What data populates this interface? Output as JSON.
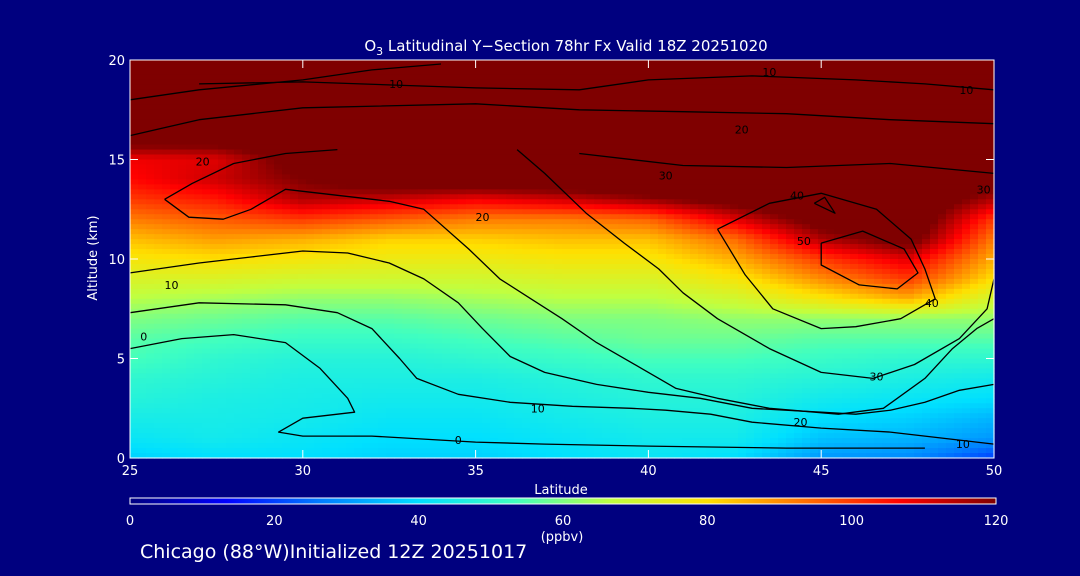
{
  "chart_data": {
    "type": "heatmap",
    "title_prefix": "O",
    "title_subscript": "3",
    "title_rest": " Latitudinal Y−Section 78hr  Fx Valid 18Z 20251020",
    "xlabel": "Latitude",
    "ylabel": "Altitude (km)",
    "xlim": [
      25,
      50
    ],
    "ylim": [
      0,
      20
    ],
    "x_ticks": [
      25,
      30,
      35,
      40,
      45,
      50
    ],
    "y_ticks": [
      0,
      5,
      10,
      15,
      20
    ],
    "colorbar": {
      "ticks": [
        0,
        20,
        40,
        60,
        80,
        100,
        120
      ],
      "units": "(ppbv)",
      "range": [
        0,
        120
      ],
      "colors": [
        "#00007f",
        "#0000ff",
        "#0080ff",
        "#00e0ff",
        "#40ffc0",
        "#c0ff40",
        "#ffe000",
        "#ff7000",
        "#ff0000",
        "#7f0000"
      ]
    },
    "ozone_field_latitudes": [
      25,
      27.5,
      30,
      32.5,
      35,
      37.5,
      40,
      42.5,
      45,
      47.5,
      50
    ],
    "ozone_field_altitudes": [
      0,
      1,
      2,
      3,
      4,
      5,
      6,
      7,
      8,
      9,
      10,
      11,
      12,
      13,
      14,
      15,
      16,
      17,
      18,
      19,
      20
    ],
    "ozone_ppbv": [
      [
        38,
        40,
        40,
        38,
        38,
        40,
        42,
        40,
        30,
        28,
        20
      ],
      [
        42,
        44,
        42,
        40,
        40,
        42,
        44,
        44,
        36,
        34,
        30
      ],
      [
        45,
        45,
        44,
        42,
        42,
        44,
        46,
        46,
        40,
        38,
        34
      ],
      [
        48,
        46,
        45,
        44,
        44,
        46,
        48,
        48,
        44,
        42,
        40
      ],
      [
        50,
        48,
        46,
        46,
        46,
        48,
        50,
        50,
        48,
        46,
        44
      ],
      [
        54,
        50,
        48,
        48,
        50,
        52,
        54,
        54,
        52,
        50,
        50
      ],
      [
        56,
        54,
        52,
        52,
        54,
        56,
        58,
        58,
        56,
        56,
        56
      ],
      [
        60,
        58,
        56,
        56,
        58,
        60,
        60,
        62,
        62,
        62,
        62
      ],
      [
        66,
        64,
        62,
        62,
        64,
        66,
        66,
        70,
        78,
        86,
        70
      ],
      [
        72,
        72,
        70,
        70,
        70,
        72,
        72,
        78,
        90,
        100,
        80
      ],
      [
        78,
        80,
        78,
        76,
        76,
        78,
        78,
        86,
        100,
        110,
        86
      ],
      [
        84,
        88,
        86,
        82,
        82,
        84,
        84,
        94,
        115,
        125,
        92
      ],
      [
        92,
        96,
        100,
        96,
        92,
        92,
        95,
        110,
        125,
        130,
        100
      ],
      [
        100,
        104,
        115,
        112,
        108,
        112,
        118,
        125,
        130,
        130,
        115
      ],
      [
        106,
        112,
        120,
        128,
        130,
        130,
        130,
        130,
        130,
        130,
        125
      ],
      [
        108,
        110,
        125,
        130,
        130,
        130,
        130,
        130,
        130,
        130,
        130
      ],
      [
        125,
        125,
        130,
        130,
        130,
        130,
        130,
        130,
        130,
        130,
        130
      ],
      [
        130,
        130,
        130,
        130,
        130,
        130,
        130,
        130,
        130,
        130,
        130
      ],
      [
        130,
        130,
        130,
        130,
        130,
        130,
        130,
        130,
        130,
        130,
        130
      ],
      [
        130,
        130,
        130,
        130,
        130,
        130,
        130,
        130,
        130,
        130,
        130
      ],
      [
        130,
        130,
        130,
        130,
        130,
        130,
        130,
        130,
        130,
        130,
        130
      ]
    ],
    "contours": [
      {
        "value": "0",
        "points": [
          [
            25,
            5.5
          ],
          [
            26.5,
            6
          ],
          [
            28,
            6.2
          ],
          [
            29.5,
            5.8
          ],
          [
            30.5,
            4.5
          ],
          [
            31.3,
            3
          ],
          [
            31.5,
            2.3
          ],
          [
            30,
            2
          ],
          [
            29.3,
            1.3
          ],
          [
            30,
            1.1
          ],
          [
            32,
            1.1
          ],
          [
            35,
            0.8
          ],
          [
            37,
            0.7
          ],
          [
            40,
            0.6
          ],
          [
            44,
            0.5
          ],
          [
            48,
            0.5
          ]
        ]
      },
      {
        "value": "10",
        "points": [
          [
            25,
            7.3
          ],
          [
            27,
            7.8
          ],
          [
            29.5,
            7.7
          ],
          [
            31,
            7.3
          ],
          [
            32,
            6.5
          ],
          [
            32.8,
            5
          ],
          [
            33.3,
            4
          ],
          [
            34.5,
            3.2
          ],
          [
            36,
            2.8
          ],
          [
            37.8,
            2.6
          ],
          [
            39.5,
            2.5
          ],
          [
            40.5,
            2.4
          ],
          [
            41.8,
            2.2
          ],
          [
            43,
            1.8
          ],
          [
            45,
            1.5
          ],
          [
            47,
            1.3
          ],
          [
            48.5,
            1
          ],
          [
            49.5,
            0.8
          ],
          [
            50,
            0.7
          ]
        ]
      },
      {
        "value": "10",
        "points": [
          [
            25,
            9.3
          ],
          [
            27,
            9.8
          ],
          [
            28.5,
            10.1
          ],
          [
            30,
            10.4
          ],
          [
            31.3,
            10.3
          ],
          [
            32.5,
            9.8
          ],
          [
            33.5,
            9
          ],
          [
            34.5,
            7.8
          ],
          [
            35.2,
            6.5
          ],
          [
            36,
            5.1
          ],
          [
            37,
            4.3
          ],
          [
            38.5,
            3.7
          ],
          [
            40,
            3.3
          ],
          [
            41.5,
            3
          ],
          [
            43,
            2.5
          ],
          [
            45,
            2.3
          ],
          [
            46,
            2.2
          ],
          [
            47,
            2.4
          ],
          [
            48,
            2.8
          ],
          [
            49,
            3.4
          ],
          [
            50,
            3.7
          ]
        ]
      },
      {
        "value": "10",
        "points": [
          [
            25,
            18
          ],
          [
            27,
            18.5
          ],
          [
            30,
            19
          ],
          [
            32,
            19.5
          ],
          [
            34,
            19.8
          ]
        ]
      },
      {
        "value": "10",
        "points": [
          [
            27,
            18.8
          ],
          [
            30,
            18.9
          ],
          [
            35,
            18.6
          ],
          [
            38,
            18.5
          ],
          [
            40,
            19
          ],
          [
            43,
            19.2
          ],
          [
            46,
            19
          ],
          [
            48,
            18.8
          ],
          [
            50,
            18.5
          ]
        ]
      },
      {
        "value": "20",
        "points": [
          [
            25,
            16.2
          ],
          [
            27,
            17
          ],
          [
            30,
            17.6
          ],
          [
            35,
            17.8
          ],
          [
            38,
            17.5
          ],
          [
            41,
            17.4
          ],
          [
            44,
            17.3
          ],
          [
            47,
            17
          ],
          [
            50,
            16.8
          ]
        ]
      },
      {
        "value": "20",
        "points": [
          [
            26,
            13
          ],
          [
            26.7,
            12.1
          ],
          [
            27.7,
            12
          ],
          [
            28.5,
            12.5
          ],
          [
            29.5,
            13.5
          ],
          [
            31,
            13.2
          ],
          [
            32.5,
            12.9
          ],
          [
            33.5,
            12.5
          ],
          [
            34.8,
            10.5
          ],
          [
            35.7,
            9
          ],
          [
            36.6,
            8
          ],
          [
            37.5,
            7
          ],
          [
            38.5,
            5.8
          ],
          [
            39.8,
            4.5
          ],
          [
            40.8,
            3.5
          ],
          [
            42,
            3
          ],
          [
            43.5,
            2.5
          ],
          [
            45.5,
            2.2
          ],
          [
            46.8,
            2.5
          ],
          [
            48,
            4
          ],
          [
            48.8,
            5.5
          ],
          [
            49.5,
            6.5
          ],
          [
            50,
            7
          ]
        ]
      },
      {
        "value": "20",
        "points": [
          [
            26,
            13
          ],
          [
            26.8,
            13.8
          ],
          [
            28,
            14.8
          ],
          [
            29.5,
            15.3
          ],
          [
            31,
            15.5
          ]
        ]
      },
      {
        "value": "30",
        "points": [
          [
            36.2,
            15.5
          ],
          [
            37,
            14.3
          ],
          [
            38.2,
            12.3
          ],
          [
            39.3,
            10.8
          ],
          [
            40.3,
            9.5
          ],
          [
            41,
            8.3
          ],
          [
            42,
            7
          ],
          [
            43.5,
            5.5
          ],
          [
            45,
            4.3
          ],
          [
            46.5,
            4
          ],
          [
            47.7,
            4.7
          ],
          [
            49,
            6
          ],
          [
            49.8,
            7.5
          ],
          [
            50,
            9
          ]
        ]
      },
      {
        "value": "30",
        "points": [
          [
            38,
            15.3
          ],
          [
            41,
            14.7
          ],
          [
            44,
            14.6
          ],
          [
            47,
            14.8
          ],
          [
            50,
            14.3
          ]
        ]
      },
      {
        "value": "40",
        "points": [
          [
            42,
            11.5
          ],
          [
            43.5,
            12.8
          ],
          [
            45,
            13.3
          ],
          [
            46.6,
            12.5
          ],
          [
            47.6,
            11
          ],
          [
            48,
            9.5
          ],
          [
            48.3,
            8
          ],
          [
            47.3,
            7
          ],
          [
            46,
            6.6
          ],
          [
            45,
            6.5
          ],
          [
            43.6,
            7.5
          ],
          [
            42.8,
            9.2
          ],
          [
            42,
            11.5
          ]
        ]
      },
      {
        "value": "40",
        "points": [
          [
            44.8,
            12.8
          ],
          [
            45.4,
            12.3
          ],
          [
            45.1,
            13.1
          ],
          [
            44.8,
            12.8
          ]
        ]
      },
      {
        "value": "50",
        "points": [
          [
            45,
            10.8
          ],
          [
            46.2,
            11.4
          ],
          [
            47.4,
            10.5
          ],
          [
            47.8,
            9.3
          ],
          [
            47.2,
            8.5
          ],
          [
            46.1,
            8.7
          ],
          [
            45,
            9.7
          ],
          [
            45,
            10.8
          ]
        ]
      }
    ],
    "contour_labels": [
      {
        "text": "10",
        "lat": 43.5,
        "alt": 19.4
      },
      {
        "text": "10",
        "lat": 32.7,
        "alt": 18.8
      },
      {
        "text": "10",
        "lat": 49.2,
        "alt": 18.5
      },
      {
        "text": "20",
        "lat": 27.1,
        "alt": 14.9
      },
      {
        "text": "20",
        "lat": 42.7,
        "alt": 16.5
      },
      {
        "text": "20",
        "lat": 35.2,
        "alt": 12.1
      },
      {
        "text": "30",
        "lat": 40.5,
        "alt": 14.2
      },
      {
        "text": "30",
        "lat": 49.7,
        "alt": 13.5
      },
      {
        "text": "40",
        "lat": 44.3,
        "alt": 13.2
      },
      {
        "text": "50",
        "lat": 44.5,
        "alt": 10.9
      },
      {
        "text": "40",
        "lat": 48.2,
        "alt": 7.8
      },
      {
        "text": "30",
        "lat": 46.6,
        "alt": 4.1
      },
      {
        "text": "20",
        "lat": 44.4,
        "alt": 1.8
      },
      {
        "text": "10",
        "lat": 36.8,
        "alt": 2.5
      },
      {
        "text": "10",
        "lat": 26.2,
        "alt": 8.7
      },
      {
        "text": "0",
        "lat": 25.4,
        "alt": 6.1
      },
      {
        "text": "0",
        "lat": 34.5,
        "alt": 0.9
      },
      {
        "text": "10",
        "lat": 49.1,
        "alt": 0.7
      }
    ]
  },
  "footer": {
    "location": "Chicago (88°W)Initialized 12Z 20251017"
  }
}
